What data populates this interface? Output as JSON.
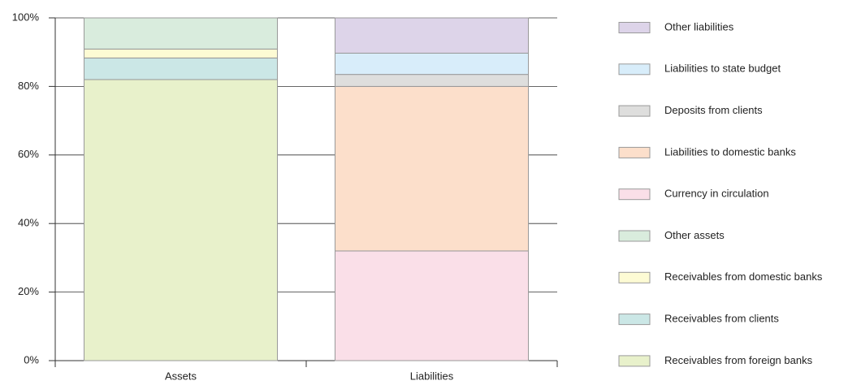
{
  "chart_data": {
    "type": "stacked_bar",
    "categories": [
      "Assets",
      "Liabilities"
    ],
    "series": [
      {
        "name": "Receivables from foreign banks",
        "color": "#e8f1cb",
        "values": [
          82,
          null
        ]
      },
      {
        "name": "Receivables from clients",
        "color": "#cbe7e6",
        "values": [
          6.3,
          null
        ]
      },
      {
        "name": "Receivables from domestic banks",
        "color": "#fdfbd4",
        "values": [
          2.6,
          null
        ]
      },
      {
        "name": "Other assets",
        "color": "#d9ecdd",
        "values": [
          9.1,
          null
        ]
      },
      {
        "name": "Currency in circulation",
        "color": "#fadfe8",
        "values": [
          null,
          32
        ]
      },
      {
        "name": "Liabilities to domestic banks",
        "color": "#fcdfcb",
        "values": [
          null,
          48
        ]
      },
      {
        "name": "Deposits from clients",
        "color": "#dededd",
        "values": [
          null,
          3.5
        ]
      },
      {
        "name": "Liabilities to state budget",
        "color": "#d8edfa",
        "values": [
          null,
          6.2
        ]
      },
      {
        "name": "Other liabilities",
        "color": "#ddd4e9",
        "values": [
          null,
          10.3
        ]
      }
    ],
    "ylim": [
      0,
      100
    ],
    "yticks": [
      {
        "value": 0,
        "label": "0%"
      },
      {
        "value": 20,
        "label": "20%"
      },
      {
        "value": 40,
        "label": "40%"
      },
      {
        "value": 60,
        "label": "60%"
      },
      {
        "value": 80,
        "label": "80%"
      },
      {
        "value": 100,
        "label": "100%"
      }
    ],
    "grid": true
  }
}
